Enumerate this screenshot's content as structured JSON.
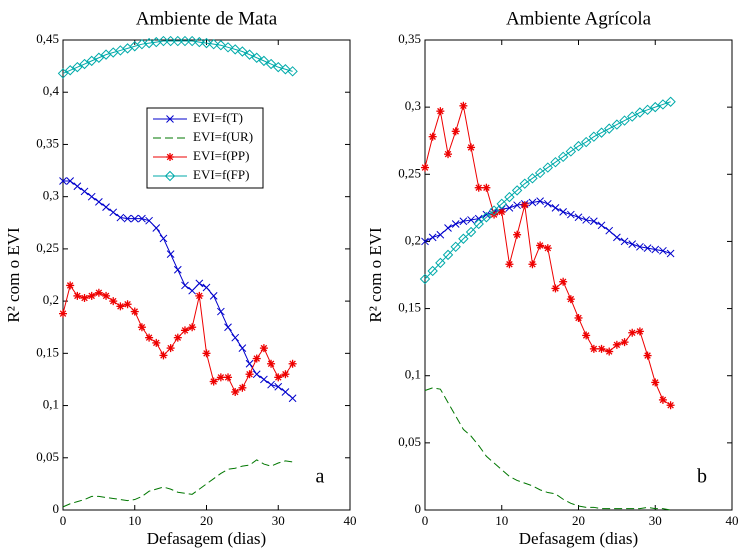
{
  "chart_data": [
    {
      "type": "line",
      "title": "Ambiente de Mata",
      "xlabel": "Defasagem (dias)",
      "ylabel": "R² com o EVI",
      "annotation": "a",
      "x": [
        0,
        1,
        2,
        3,
        4,
        5,
        6,
        7,
        8,
        9,
        10,
        11,
        12,
        13,
        14,
        15,
        16,
        17,
        18,
        19,
        20,
        21,
        22,
        23,
        24,
        25,
        26,
        27,
        28,
        29,
        30,
        31,
        32
      ],
      "xlim": [
        0,
        40
      ],
      "xticks": [
        0,
        10,
        20,
        30,
        40
      ],
      "ylim": [
        0,
        0.45
      ],
      "yticks": [
        0,
        {
          "value": 0.05,
          "label": "0,05"
        },
        {
          "value": 0.1,
          "label": "0,1"
        },
        {
          "value": 0.15,
          "label": "0,15"
        },
        {
          "value": 0.2,
          "label": "0,2"
        },
        {
          "value": 0.25,
          "label": "0,25"
        },
        {
          "value": 0.3,
          "label": "0,3"
        },
        {
          "value": 0.35,
          "label": "0,35"
        },
        {
          "value": 0.4,
          "label": "0,4"
        },
        {
          "value": 0.45,
          "label": "0,45"
        }
      ],
      "legend": true,
      "series": [
        {
          "name": "EVI=f(T)",
          "color": "#0000cc",
          "marker": "x",
          "dash": false,
          "values": [
            0.315,
            0.315,
            0.31,
            0.305,
            0.3,
            0.295,
            0.29,
            0.285,
            0.28,
            0.279,
            0.279,
            0.279,
            0.277,
            0.27,
            0.26,
            0.245,
            0.23,
            0.215,
            0.21,
            0.217,
            0.213,
            0.205,
            0.19,
            0.175,
            0.165,
            0.155,
            0.14,
            0.13,
            0.125,
            0.12,
            0.118,
            0.113,
            0.107
          ]
        },
        {
          "name": "EVI=f(UR)",
          "color": "#007700",
          "marker": "none",
          "dash": true,
          "values": [
            0.003,
            0.006,
            0.008,
            0.01,
            0.013,
            0.013,
            0.012,
            0.011,
            0.01,
            0.009,
            0.01,
            0.013,
            0.018,
            0.02,
            0.022,
            0.02,
            0.017,
            0.016,
            0.015,
            0.02,
            0.025,
            0.03,
            0.035,
            0.039,
            0.04,
            0.042,
            0.043,
            0.048,
            0.044,
            0.042,
            0.045,
            0.047,
            0.046
          ]
        },
        {
          "name": "EVI=f(PP)",
          "color": "#ee0000",
          "marker": "star",
          "dash": false,
          "values": [
            0.188,
            0.215,
            0.205,
            0.203,
            0.205,
            0.208,
            0.205,
            0.2,
            0.195,
            0.197,
            0.19,
            0.175,
            0.165,
            0.16,
            0.148,
            0.155,
            0.165,
            0.172,
            0.175,
            0.205,
            0.15,
            0.123,
            0.127,
            0.127,
            0.113,
            0.117,
            0.13,
            0.145,
            0.155,
            0.14,
            0.127,
            0.13,
            0.14
          ]
        },
        {
          "name": "EVI=f(FP)",
          "color": "#00aaaa",
          "marker": "diamond",
          "dash": false,
          "values": [
            0.418,
            0.421,
            0.424,
            0.427,
            0.43,
            0.433,
            0.436,
            0.438,
            0.44,
            0.442,
            0.444,
            0.446,
            0.447,
            0.448,
            0.449,
            0.449,
            0.449,
            0.449,
            0.449,
            0.448,
            0.447,
            0.446,
            0.445,
            0.443,
            0.441,
            0.439,
            0.436,
            0.433,
            0.43,
            0.427,
            0.424,
            0.422,
            0.42
          ]
        }
      ]
    },
    {
      "type": "line",
      "title": "Ambiente Agrícola",
      "xlabel": "Defasagem (dias)",
      "ylabel": "R² com o EVI",
      "annotation": "b",
      "x": [
        0,
        1,
        2,
        3,
        4,
        5,
        6,
        7,
        8,
        9,
        10,
        11,
        12,
        13,
        14,
        15,
        16,
        17,
        18,
        19,
        20,
        21,
        22,
        23,
        24,
        25,
        26,
        27,
        28,
        29,
        30,
        31,
        32
      ],
      "xlim": [
        0,
        40
      ],
      "xticks": [
        0,
        10,
        20,
        30,
        40
      ],
      "ylim": [
        0,
        0.35
      ],
      "yticks": [
        0,
        {
          "value": 0.05,
          "label": "0,05"
        },
        {
          "value": 0.1,
          "label": "0,1"
        },
        {
          "value": 0.15,
          "label": "0,15"
        },
        {
          "value": 0.2,
          "label": "0,2"
        },
        {
          "value": 0.25,
          "label": "0,25"
        },
        {
          "value": 0.3,
          "label": "0,3"
        },
        {
          "value": 0.35,
          "label": "0,35"
        }
      ],
      "legend": false,
      "series": [
        {
          "color": "#0000cc",
          "marker": "x",
          "dash": false,
          "values": [
            0.2,
            0.203,
            0.205,
            0.21,
            0.213,
            0.215,
            0.216,
            0.217,
            0.22,
            0.222,
            0.224,
            0.225,
            0.227,
            0.228,
            0.229,
            0.23,
            0.228,
            0.225,
            0.222,
            0.22,
            0.218,
            0.216,
            0.215,
            0.212,
            0.208,
            0.203,
            0.2,
            0.198,
            0.196,
            0.195,
            0.194,
            0.193,
            0.191
          ]
        },
        {
          "color": "#007700",
          "marker": "none",
          "dash": true,
          "values": [
            0.089,
            0.091,
            0.09,
            0.08,
            0.07,
            0.06,
            0.055,
            0.048,
            0.04,
            0.035,
            0.03,
            0.025,
            0.022,
            0.02,
            0.018,
            0.015,
            0.013,
            0.012,
            0.008,
            0.005,
            0.003,
            0.002,
            0.002,
            0.001,
            0.001,
            0.001,
            0.001,
            0.001,
            0.001,
            0.002,
            0.001,
            0.001,
            0
          ]
        },
        {
          "color": "#ee0000",
          "marker": "star",
          "dash": false,
          "values": [
            0.255,
            0.278,
            0.297,
            0.265,
            0.282,
            0.301,
            0.27,
            0.24,
            0.24,
            0.22,
            0.222,
            0.183,
            0.205,
            0.227,
            0.183,
            0.197,
            0.195,
            0.165,
            0.17,
            0.157,
            0.143,
            0.13,
            0.12,
            0.12,
            0.118,
            0.123,
            0.125,
            0.132,
            0.133,
            0.115,
            0.095,
            0.082,
            0.078
          ]
        },
        {
          "color": "#00aaaa",
          "marker": "diamond",
          "dash": false,
          "values": [
            0.172,
            0.178,
            0.184,
            0.19,
            0.196,
            0.202,
            0.207,
            0.213,
            0.218,
            0.223,
            0.228,
            0.233,
            0.238,
            0.243,
            0.247,
            0.251,
            0.255,
            0.259,
            0.263,
            0.267,
            0.271,
            0.274,
            0.278,
            0.281,
            0.284,
            0.287,
            0.29,
            0.293,
            0.296,
            0.298,
            0.3,
            0.302,
            0.304
          ]
        }
      ]
    }
  ]
}
